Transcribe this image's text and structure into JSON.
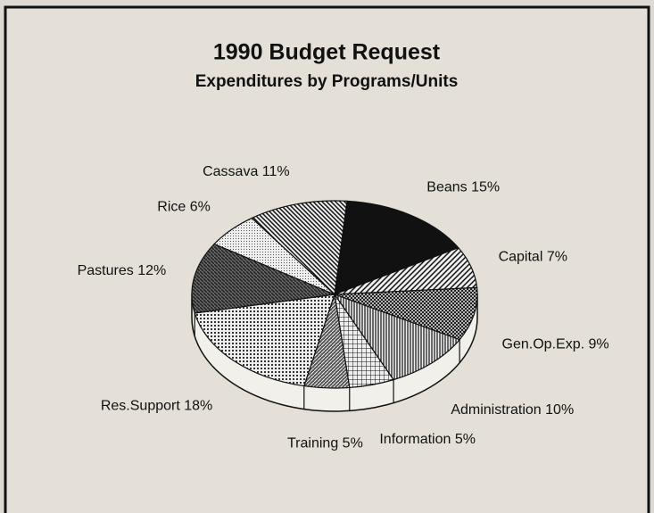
{
  "chart_data": {
    "type": "pie",
    "title": "1990 Budget Request",
    "subtitle": "Expenditures by Programs/Units",
    "categories": [
      "Beans",
      "Capital",
      "Gen.Op.Exp.",
      "Administration",
      "Information",
      "Training",
      "Res.Support",
      "Pastures",
      "Rice",
      "Cassava"
    ],
    "values": [
      15,
      7,
      9,
      10,
      5,
      5,
      18,
      12,
      6,
      11
    ],
    "value_labels": [
      "15%",
      "7%",
      "9%",
      "10%",
      "5%",
      "5%",
      "18%",
      "12%",
      "6%",
      "11%"
    ]
  }
}
